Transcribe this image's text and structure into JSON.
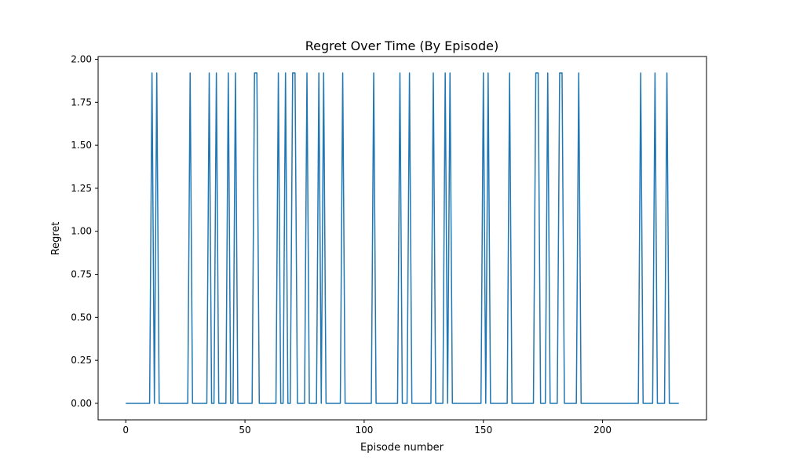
{
  "chart_data": {
    "type": "line",
    "title": "Regret Over Time (By Episode)",
    "xlabel": "Episode number",
    "ylabel": "Regret",
    "xlim": [
      -11.6,
      243.6
    ],
    "ylim": [
      -0.096,
      2.016
    ],
    "x_ticks": [
      0,
      50,
      100,
      150,
      200
    ],
    "x_tick_labels": [
      "0",
      "50",
      "100",
      "150",
      "200"
    ],
    "y_ticks": [
      0,
      0.25,
      0.5,
      0.75,
      1.0,
      1.25,
      1.5,
      1.75,
      2.0
    ],
    "y_tick_labels": [
      "0.00",
      "0.25",
      "0.50",
      "0.75",
      "1.00",
      "1.25",
      "1.50",
      "1.75",
      "2.00"
    ],
    "grid": false,
    "line_color": "#1f77b4",
    "series": [
      {
        "x_range": [
          0,
          232
        ],
        "baseline_value": 0.0,
        "spike_value": 1.92,
        "spike_episodes": [
          11,
          13,
          27,
          35,
          38,
          43,
          46,
          54,
          55,
          64,
          67,
          70,
          71,
          76,
          81,
          83,
          91,
          104,
          115,
          119,
          129,
          134,
          136,
          150,
          152,
          161,
          172,
          173,
          177,
          182,
          183,
          190,
          216,
          222,
          227
        ]
      }
    ]
  }
}
